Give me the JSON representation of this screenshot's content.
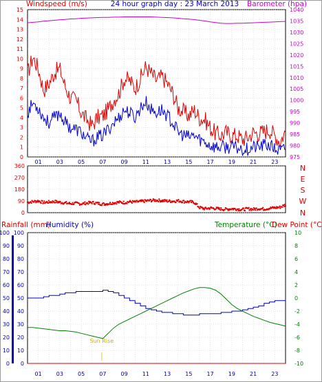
{
  "header": {
    "left_label": "Windspeed (m/s)",
    "title": "24 hour graph day : 23 March 2013",
    "right_label": "Barometer (hpa)"
  },
  "colors": {
    "wind": "#e00000",
    "gust": "#e00000",
    "wind_avg": "#0000d0",
    "barometer": "#cc00cc",
    "humidity": "#0000c0",
    "temperature": "#008000",
    "rain": "#e00000",
    "axis_green": "#008000",
    "sunrise": "#e6d200",
    "grid": "#c8c8c8"
  },
  "x_ticks": [
    "01",
    "03",
    "05",
    "07",
    "09",
    "11",
    "13",
    "15",
    "17",
    "19",
    "21",
    "23"
  ],
  "chart_data": [
    {
      "type": "line",
      "panel": "wind-barometer",
      "title": "24 hour graph day : 23 March 2013",
      "ylabel": "Windspeed (m/s)",
      "ylabel_right": "Barometer (hpa)",
      "ylim": [
        0,
        15
      ],
      "y_ticks": [
        0,
        1,
        2,
        3,
        4,
        5,
        6,
        7,
        8,
        9,
        10,
        11,
        12,
        13,
        14,
        15
      ],
      "y2lim": [
        975,
        1040
      ],
      "y2_ticks": [
        975,
        980,
        985,
        990,
        995,
        1000,
        1005,
        1010,
        1015,
        1020,
        1025,
        1030,
        1035,
        1040
      ],
      "x": [
        0,
        0.5,
        1,
        1.5,
        2,
        2.5,
        3,
        3.5,
        4,
        4.5,
        5,
        5.5,
        6,
        6.5,
        7,
        7.5,
        8,
        8.5,
        9,
        9.5,
        10,
        10.5,
        11,
        11.5,
        12,
        12.5,
        13,
        13.5,
        14,
        14.5,
        15,
        15.5,
        16,
        16.5,
        17,
        17.5,
        18,
        18.5,
        19,
        19.5,
        20,
        20.5,
        21,
        21.5,
        22,
        22.5,
        23,
        23.5,
        24
      ],
      "series": [
        {
          "name": "gust",
          "axis": "left",
          "values": [
            8.5,
            10.2,
            9.0,
            6.8,
            7.5,
            8.6,
            9.0,
            7.2,
            6.0,
            5.8,
            4.5,
            3.8,
            3.2,
            4.0,
            4.2,
            4.8,
            5.8,
            6.5,
            8.0,
            7.8,
            7.0,
            8.0,
            9.2,
            8.5,
            7.8,
            8.2,
            7.5,
            6.5,
            5.0,
            4.6,
            4.2,
            4.8,
            4.0,
            3.8,
            3.0,
            2.4,
            2.2,
            2.5,
            2.2,
            2.2,
            1.8,
            2.0,
            2.5,
            2.4,
            2.6,
            2.8,
            2.2,
            1.6,
            2.6
          ]
        },
        {
          "name": "average",
          "axis": "left",
          "values": [
            4.5,
            5.5,
            5.0,
            4.0,
            3.5,
            4.0,
            4.5,
            3.5,
            3.0,
            2.8,
            2.5,
            1.8,
            1.6,
            2.0,
            2.2,
            2.8,
            3.5,
            4.0,
            4.8,
            4.5,
            4.0,
            5.0,
            5.6,
            4.8,
            4.5,
            4.8,
            4.2,
            3.5,
            2.5,
            2.2,
            2.0,
            2.2,
            1.8,
            1.5,
            1.2,
            1.0,
            1.0,
            1.0,
            1.0,
            0.9,
            0.8,
            0.8,
            1.0,
            1.0,
            1.2,
            1.2,
            0.8,
            0.6,
            0.8
          ]
        },
        {
          "name": "barometer",
          "axis": "right",
          "values": [
            1034.2,
            1034.4,
            1034.6,
            1034.9,
            1035.1,
            1035.3,
            1035.5,
            1035.7,
            1035.9,
            1036.0,
            1036.2,
            1036.3,
            1036.4,
            1036.5,
            1036.6,
            1036.6,
            1036.7,
            1036.7,
            1036.8,
            1036.8,
            1036.8,
            1036.8,
            1036.8,
            1036.8,
            1036.7,
            1036.6,
            1036.5,
            1036.4,
            1036.2,
            1036.0,
            1035.8,
            1035.6,
            1035.3,
            1035.0,
            1034.6,
            1034.3,
            1034.0,
            1033.9,
            1033.9,
            1034.0,
            1034.0,
            1034.1,
            1034.2,
            1034.3,
            1034.4,
            1034.5,
            1034.6,
            1034.7,
            1034.8
          ]
        }
      ]
    },
    {
      "type": "scatter",
      "panel": "wind-direction",
      "ylim": [
        0,
        360
      ],
      "y_ticks": [
        0,
        90,
        180,
        270,
        360
      ],
      "right_labels": [
        "N",
        "W",
        "S",
        "E",
        "N"
      ],
      "x": [
        0,
        0.5,
        1,
        1.5,
        2,
        2.5,
        3,
        3.5,
        4,
        4.5,
        5,
        5.5,
        6,
        6.5,
        7,
        7.5,
        8,
        8.5,
        9,
        9.5,
        10,
        10.5,
        11,
        11.5,
        12,
        12.5,
        13,
        13.5,
        14,
        14.5,
        15,
        15.5,
        16,
        16.5,
        17,
        17.5,
        18,
        18.5,
        19,
        19.5,
        20,
        20.5,
        21,
        21.5,
        22,
        22.5,
        23,
        23.5,
        24
      ],
      "series": [
        {
          "name": "direction",
          "values": [
            80,
            85,
            90,
            78,
            82,
            86,
            80,
            75,
            70,
            72,
            68,
            74,
            78,
            72,
            66,
            70,
            76,
            80,
            78,
            84,
            82,
            86,
            90,
            94,
            96,
            92,
            90,
            88,
            92,
            86,
            84,
            80,
            40,
            30,
            36,
            32,
            28,
            26,
            30,
            28,
            24,
            30,
            26,
            32,
            28,
            34,
            38,
            42,
            60
          ]
        }
      ]
    },
    {
      "type": "line",
      "panel": "rain-humidity-temperature",
      "ylabel_left_1": "Rainfall (mm)",
      "ylabel_left_2": "Humidity (%)",
      "ylabel_right_1": "Temperature (°C)",
      "ylabel_right_2": "Dew Point (°C)",
      "ylim": [
        0,
        100
      ],
      "y_ticks": [
        0,
        10,
        20,
        30,
        40,
        50,
        60,
        70,
        80,
        90,
        100
      ],
      "y2lim": [
        -10,
        10
      ],
      "y2_ticks": [
        -10,
        -8,
        -6,
        -4,
        -2,
        0,
        2,
        4,
        6,
        8,
        10
      ],
      "annotation": "Sun Rise",
      "annotation_x": 6.9,
      "x": [
        0,
        0.5,
        1,
        1.5,
        2,
        2.5,
        3,
        3.5,
        4,
        4.5,
        5,
        5.5,
        6,
        6.5,
        7,
        7.5,
        8,
        8.5,
        9,
        9.5,
        10,
        10.5,
        11,
        11.5,
        12,
        12.5,
        13,
        13.5,
        14,
        14.5,
        15,
        15.5,
        16,
        16.5,
        17,
        17.5,
        18,
        18.5,
        19,
        19.5,
        20,
        20.5,
        21,
        21.5,
        22,
        22.5,
        23,
        23.5,
        24
      ],
      "series": [
        {
          "name": "humidity",
          "axis": "left",
          "values": [
            50,
            50,
            50,
            51,
            52,
            52,
            53,
            54,
            54,
            55,
            55,
            55,
            55,
            55,
            56,
            55,
            54,
            52,
            50,
            48,
            46,
            44,
            42,
            41,
            40,
            39,
            39,
            38,
            38,
            37,
            37,
            37,
            38,
            38,
            38,
            38,
            39,
            39,
            40,
            40,
            41,
            42,
            43,
            44,
            46,
            47,
            48,
            48,
            48
          ]
        },
        {
          "name": "temperature",
          "axis": "right",
          "values": [
            -4.5,
            -4.5,
            -4.6,
            -4.7,
            -4.8,
            -4.9,
            -5.0,
            -5.0,
            -5.1,
            -5.2,
            -5.4,
            -5.6,
            -5.8,
            -6.0,
            -6.2,
            -5.4,
            -4.6,
            -4.0,
            -3.6,
            -3.2,
            -2.8,
            -2.4,
            -2.0,
            -1.6,
            -1.2,
            -0.8,
            -0.4,
            0.0,
            0.4,
            0.8,
            1.1,
            1.4,
            1.6,
            1.6,
            1.5,
            1.2,
            0.6,
            -0.2,
            -1.0,
            -1.6,
            -2.0,
            -2.4,
            -2.8,
            -3.1,
            -3.4,
            -3.7,
            -3.9,
            -4.1,
            -4.3
          ]
        },
        {
          "name": "rainfall",
          "axis": "left",
          "values": [
            0,
            0,
            0,
            0,
            0,
            0,
            0,
            0,
            0,
            0,
            0,
            0,
            0,
            0,
            0,
            0,
            0,
            0,
            0,
            0,
            0,
            0,
            0,
            0,
            0,
            0,
            0,
            0,
            0,
            0,
            0,
            0,
            0,
            0,
            0,
            0,
            0,
            0,
            0,
            0,
            0,
            0,
            0,
            0,
            0,
            0,
            0,
            0,
            0
          ]
        }
      ]
    }
  ]
}
